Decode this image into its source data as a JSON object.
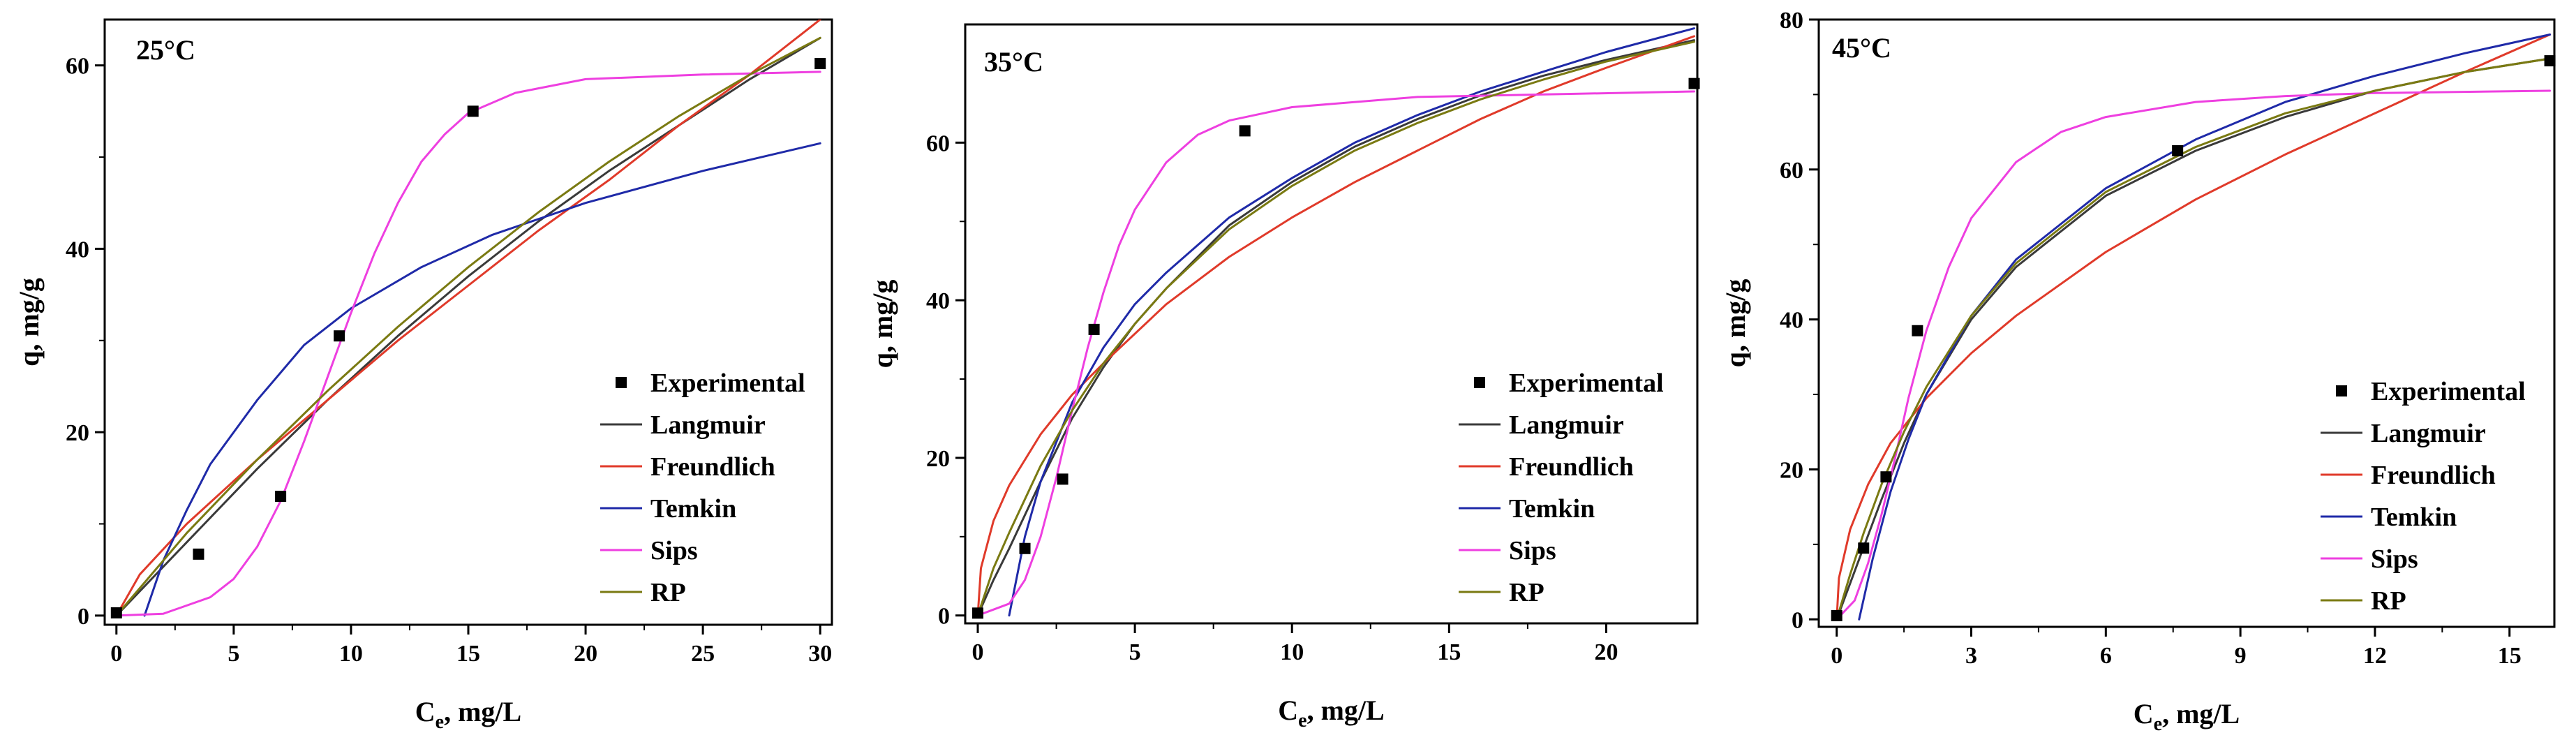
{
  "colors": {
    "experimental": "#000000",
    "langmuir": "#3a3a3a",
    "freundlich": "#e03a2a",
    "temkin": "#1f2aa8",
    "sips": "#ee3fe0",
    "rp": "#7a7a12"
  },
  "chart_data": [
    {
      "type": "scatter",
      "title": "25°C",
      "xlabel_main": "C",
      "xlabel_sub": "e",
      "xlabel_rest": ", mg/L",
      "ylabel": "q, mg/g",
      "xlim": [
        -0.5,
        30.5
      ],
      "ylim": [
        -1,
        65
      ],
      "xticks": [
        0,
        5,
        10,
        15,
        20,
        25,
        30
      ],
      "yticks": [
        0,
        20,
        40,
        60
      ],
      "legend_position": "right-middle",
      "legend": [
        "Experimental",
        "Langmuir",
        "Freundlich",
        "Temkin",
        "Sips",
        "RP"
      ],
      "experimental": {
        "x": [
          0,
          3.5,
          7,
          9.5,
          15.2,
          30
        ],
        "y": [
          0.3,
          6.7,
          13,
          30.5,
          55,
          60.2
        ]
      },
      "series": [
        {
          "name": "Langmuir",
          "key": "langmuir",
          "x": [
            0,
            3,
            6,
            9,
            12,
            15,
            18,
            21,
            24,
            27,
            30
          ],
          "y": [
            0,
            8,
            16,
            23.5,
            30.5,
            37,
            43,
            48.5,
            53.5,
            58.5,
            63
          ]
        },
        {
          "name": "Freundlich",
          "key": "freundlich",
          "x": [
            0,
            1,
            3,
            6,
            9,
            12,
            15,
            18,
            21,
            24,
            27,
            30
          ],
          "y": [
            0,
            4.5,
            10,
            17,
            23.5,
            30,
            36,
            42,
            47.5,
            53.5,
            59,
            65
          ]
        },
        {
          "name": "Temkin",
          "key": "temkin",
          "x": [
            1.2,
            2,
            3,
            4,
            6,
            8,
            10,
            13,
            16,
            20,
            25,
            30
          ],
          "y": [
            0,
            6,
            11.5,
            16.5,
            23.5,
            29.5,
            33.5,
            38,
            41.5,
            45,
            48.5,
            51.5
          ]
        },
        {
          "name": "Sips",
          "key": "sips",
          "x": [
            0,
            2,
            4,
            5,
            6,
            7,
            8,
            9,
            10,
            11,
            12,
            13,
            14,
            15,
            17,
            20,
            25,
            30
          ],
          "y": [
            0,
            0.2,
            2,
            4,
            7.5,
            12.5,
            19,
            26,
            33,
            39.5,
            45,
            49.5,
            52.5,
            54.8,
            57,
            58.5,
            59,
            59.3
          ]
        },
        {
          "name": "RP",
          "key": "rp",
          "x": [
            0,
            3,
            6,
            9,
            12,
            15,
            18,
            21,
            24,
            27,
            30
          ],
          "y": [
            0,
            9,
            17,
            24.5,
            31.5,
            38,
            44,
            49.5,
            54.5,
            59,
            63
          ]
        }
      ]
    },
    {
      "type": "scatter",
      "title": "35°C",
      "xlabel_main": "C",
      "xlabel_sub": "e",
      "xlabel_rest": ", mg/L",
      "ylabel": "q, mg/g",
      "xlim": [
        -0.4,
        22.9
      ],
      "ylim": [
        -1,
        75
      ],
      "xticks": [
        0,
        5,
        10,
        15,
        20
      ],
      "yticks": [
        0,
        20,
        40,
        60
      ],
      "legend_position": "right-middle",
      "legend": [
        "Experimental",
        "Langmuir",
        "Freundlich",
        "Temkin",
        "Sips",
        "RP"
      ],
      "experimental": {
        "x": [
          0,
          1.5,
          2.7,
          3.7,
          8.5,
          22.8
        ],
        "y": [
          0.3,
          8.5,
          17.3,
          36.3,
          61.5,
          67.5
        ]
      },
      "series": [
        {
          "name": "Langmuir",
          "key": "langmuir",
          "x": [
            0,
            0.5,
            1,
            2,
            3,
            4,
            5,
            6,
            8,
            10,
            12,
            14,
            16,
            18,
            20,
            22.8
          ],
          "y": [
            0,
            4.5,
            8.5,
            17,
            25,
            31.5,
            37,
            41.5,
            49.5,
            55,
            59.5,
            63,
            66,
            68.5,
            70.5,
            73
          ]
        },
        {
          "name": "Freundlich",
          "key": "freundlich",
          "x": [
            0,
            0.1,
            0.5,
            1,
            2,
            3,
            4,
            6,
            8,
            10,
            12,
            14,
            16,
            18,
            20,
            22.8
          ],
          "y": [
            0,
            6,
            12,
            16.5,
            23,
            28,
            32,
            39.5,
            45.5,
            50.5,
            55,
            59,
            63,
            66.5,
            69.5,
            73.5
          ]
        },
        {
          "name": "Temkin",
          "key": "temkin",
          "x": [
            1,
            1.5,
            2,
            3,
            4,
            5,
            6,
            8,
            10,
            12,
            14,
            16,
            18,
            20,
            22.8
          ],
          "y": [
            0,
            10,
            17,
            27,
            34,
            39.5,
            43.5,
            50.5,
            55.5,
            60,
            63.5,
            66.5,
            69,
            71.5,
            74.5
          ]
        },
        {
          "name": "Sips",
          "key": "sips",
          "x": [
            0,
            1,
            1.5,
            2,
            2.5,
            3,
            3.5,
            4,
            4.5,
            5,
            6,
            7,
            8,
            10,
            14,
            22.8
          ],
          "y": [
            0,
            1.5,
            4.5,
            10,
            17.5,
            26,
            34,
            41,
            47,
            51.5,
            57.5,
            61,
            62.8,
            64.5,
            65.8,
            66.5
          ]
        },
        {
          "name": "RP",
          "key": "rp",
          "x": [
            0,
            0.5,
            1,
            2,
            3,
            4,
            5,
            6,
            8,
            10,
            12,
            14,
            16,
            18,
            20,
            22.8
          ],
          "y": [
            0,
            6,
            10.5,
            19,
            26,
            32,
            37,
            41.5,
            49,
            54.5,
            59,
            62.5,
            65.5,
            68,
            70.3,
            72.8
          ]
        }
      ]
    },
    {
      "type": "scatter",
      "title": "45°C",
      "xlabel_main": "C",
      "xlabel_sub": "e",
      "xlabel_rest": ", mg/L",
      "ylabel": "q, mg/g",
      "xlim": [
        -0.4,
        16
      ],
      "ylim": [
        -1,
        80
      ],
      "xticks": [
        0,
        3,
        6,
        9,
        12,
        15
      ],
      "yticks": [
        0,
        20,
        40,
        60,
        80
      ],
      "legend_position": "right-middle",
      "legend": [
        "Experimental",
        "Langmuir",
        "Freundlich",
        "Temkin",
        "Sips",
        "RP"
      ],
      "experimental": {
        "x": [
          0,
          0.6,
          1.1,
          1.8,
          7.6,
          15.9
        ],
        "y": [
          0.5,
          9.5,
          19,
          38.5,
          62.5,
          74.5
        ]
      },
      "series": [
        {
          "name": "Langmuir",
          "key": "langmuir",
          "x": [
            0,
            0.5,
            1,
            1.5,
            2,
            3,
            4,
            6,
            8,
            10,
            12,
            14,
            15.9
          ],
          "y": [
            0,
            8,
            16,
            23.5,
            30,
            40,
            47,
            56.5,
            62.5,
            67,
            70.5,
            73,
            74.8
          ]
        },
        {
          "name": "Freundlich",
          "key": "freundlich",
          "x": [
            0,
            0.05,
            0.3,
            0.7,
            1.2,
            2,
            3,
            4,
            6,
            8,
            10,
            12,
            14,
            15.9
          ],
          "y": [
            0,
            5.5,
            12,
            18,
            23.5,
            29.5,
            35.5,
            40.5,
            49,
            56,
            62,
            67.5,
            73,
            78
          ]
        },
        {
          "name": "Temkin",
          "key": "temkin",
          "x": [
            0.5,
            0.8,
            1.2,
            1.6,
            2,
            3,
            4,
            6,
            8,
            10,
            12,
            14,
            15.9
          ],
          "y": [
            0,
            8,
            17,
            24,
            30,
            40.5,
            48,
            57.5,
            64,
            69,
            72.5,
            75.5,
            78
          ]
        },
        {
          "name": "Sips",
          "key": "sips",
          "x": [
            0,
            0.4,
            0.7,
            1,
            1.3,
            1.6,
            2,
            2.5,
            3,
            4,
            5,
            6,
            8,
            10,
            12,
            15.9
          ],
          "y": [
            0,
            2.5,
            7.5,
            14,
            21.5,
            29.5,
            38.5,
            47,
            53.5,
            61,
            65,
            67,
            69,
            69.8,
            70.2,
            70.5
          ]
        },
        {
          "name": "RP",
          "key": "rp",
          "x": [
            0,
            0.3,
            0.6,
            1,
            1.5,
            2,
            3,
            4,
            6,
            8,
            10,
            12,
            14,
            15.9
          ],
          "y": [
            0,
            6,
            11.5,
            18,
            25,
            31,
            40.5,
            47.5,
            57,
            63,
            67.5,
            70.5,
            73,
            74.8
          ]
        }
      ]
    }
  ]
}
